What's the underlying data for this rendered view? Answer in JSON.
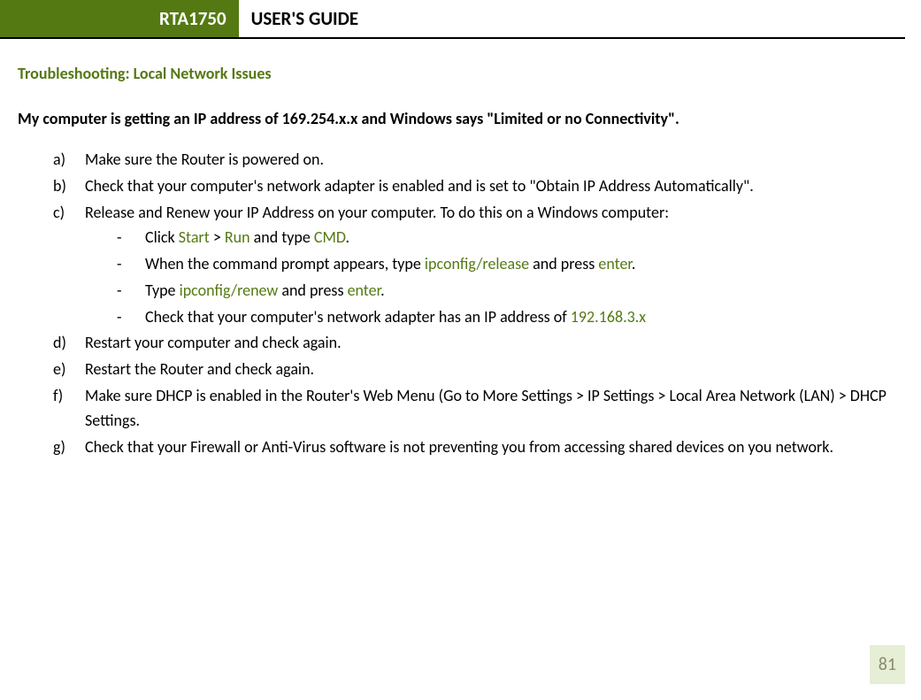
{
  "colors": {
    "brand_green": "#547913",
    "pagebox_bg": "#e6eed5",
    "pagebox_text": "#8a8a6a",
    "text": "#000000",
    "background": "#ffffff"
  },
  "typography": {
    "base_font": "Calibri",
    "header_fontsize_pt": 16,
    "section_title_fontsize_pt": 14,
    "body_fontsize_pt": 14
  },
  "header": {
    "product": "RTA1750",
    "title": "USER'S GUIDE"
  },
  "section": {
    "title": "Troubleshooting: Local Network Issues",
    "question": "My computer is getting an IP address of 169.254.x.x and Windows says \"Limited or no Connectivity\"."
  },
  "steps": {
    "a": {
      "marker": "a)",
      "text": "Make sure the Router is powered on."
    },
    "b": {
      "marker": "b)",
      "text": "Check that your computer's network adapter is enabled and is set to \"Obtain IP Address Automatically\"."
    },
    "c": {
      "marker": "c)",
      "text": "Release and Renew your IP Address on your computer.  To do this on a Windows computer:",
      "sub": {
        "s1": {
          "pre": "Click ",
          "h1": "Start",
          "mid1": " > ",
          "h2": "Run",
          "mid2": " and type ",
          "h3": "CMD",
          "post": "."
        },
        "s2": {
          "pre": "When the command prompt appears, type ",
          "h1": "ipconfig/release",
          "mid1": " and press ",
          "h2": "enter",
          "post": "."
        },
        "s3": {
          "pre": "Type ",
          "h1": "ipconfig/renew",
          "mid1": " and press ",
          "h2": "enter",
          "post": "."
        },
        "s4": {
          "pre": "Check that your computer's network adapter has an IP address of ",
          "h1": "192.168.3.x"
        }
      }
    },
    "d": {
      "marker": "d)",
      "text": "Restart your computer and check again."
    },
    "e": {
      "marker": "e)",
      "text": "Restart the Router and check again."
    },
    "f": {
      "marker": "f)",
      "text": "Make sure DHCP is enabled in the Router's Web Menu (Go to More Settings > IP Settings > Local Area Network (LAN) > DHCP Settings."
    },
    "g": {
      "marker": "g)",
      "text": "Check that your Firewall or Anti-Virus software is not preventing you from accessing shared devices on you network."
    }
  },
  "page_number": "81"
}
